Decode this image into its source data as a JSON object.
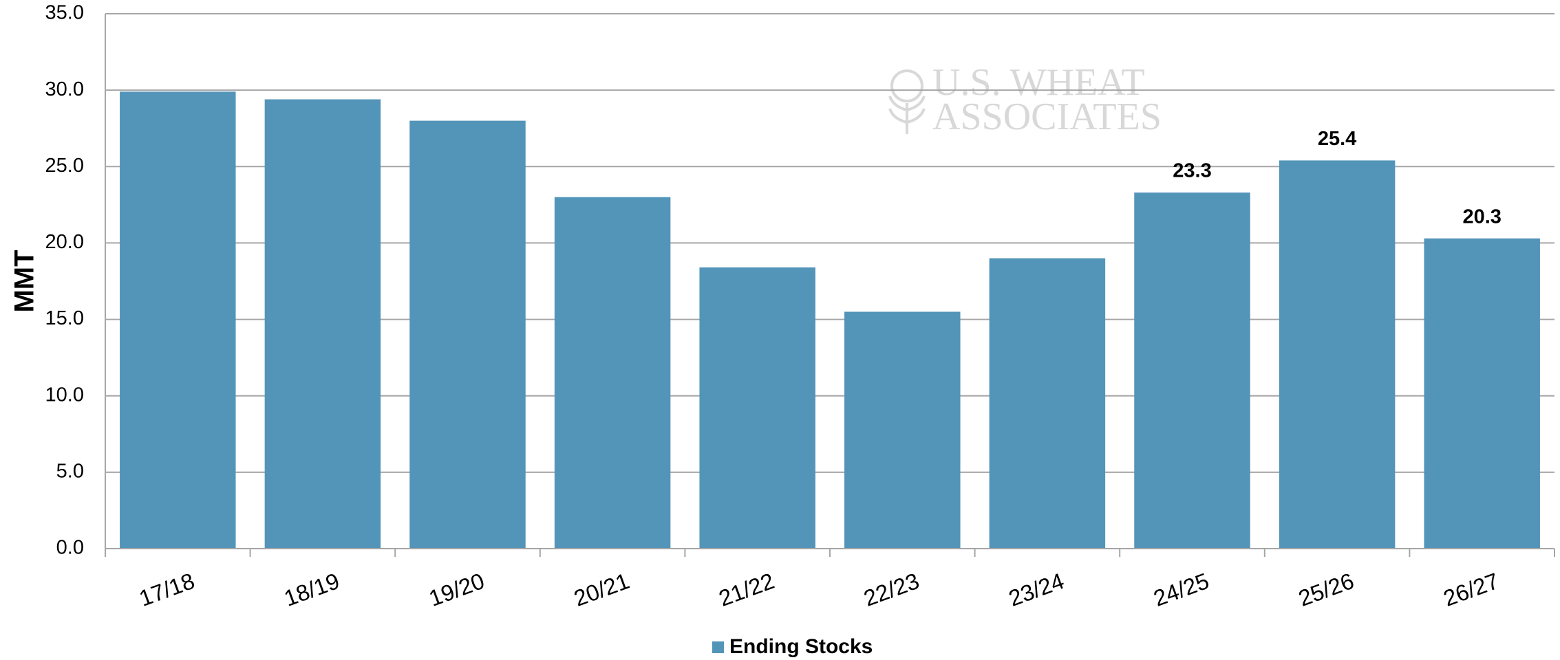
{
  "chart_data": {
    "type": "bar",
    "y_label": "MMT",
    "watermark": [
      "U.S. WHEAT",
      "ASSOCIATES"
    ],
    "categories": [
      "17/18",
      "18/19",
      "19/20",
      "20/21",
      "21/22",
      "22/23",
      "23/24",
      "24/25",
      "25/26",
      "26/27"
    ],
    "series": [
      {
        "name": "Ending Stocks",
        "color": "#5394b9",
        "values": [
          29.9,
          29.4,
          28.0,
          23.0,
          18.4,
          15.5,
          19.0,
          23.3,
          25.4,
          20.3
        ],
        "value_labels": [
          null,
          null,
          null,
          null,
          null,
          null,
          null,
          "23.3",
          "25.4",
          "20.3"
        ]
      }
    ],
    "ylim": [
      0,
      35
    ],
    "yticks": [
      {
        "value": 0,
        "label": "0.0"
      },
      {
        "value": 5,
        "label": "5.0"
      },
      {
        "value": 10,
        "label": "10.0"
      },
      {
        "value": 15,
        "label": "15.0"
      },
      {
        "value": 20,
        "label": "20.0"
      },
      {
        "value": 25,
        "label": "25.0"
      },
      {
        "value": 30,
        "label": "30.0"
      },
      {
        "value": 35,
        "label": "35.0"
      }
    ],
    "grid": true,
    "legend": "bottom"
  }
}
